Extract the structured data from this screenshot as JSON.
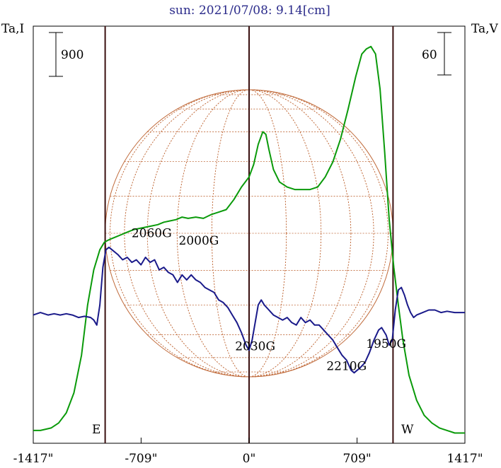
{
  "chart_data": {
    "type": "line",
    "title": "sun: 2021/07/08: 9.14[cm]",
    "left_axis_label": "Ta,I",
    "right_axis_label": "Ta,V",
    "left_scale_bar": "900",
    "right_scale_bar": "60",
    "east_label": "E",
    "west_label": "W",
    "xlim": [
      -1417,
      1417
    ],
    "x_ticks": [
      {
        "value": -1417,
        "label": "-1417\""
      },
      {
        "value": -709,
        "label": "-709\""
      },
      {
        "value": 0,
        "label": "0\""
      },
      {
        "value": 709,
        "label": "709\""
      },
      {
        "value": 1417,
        "label": "1417\""
      }
    ],
    "vertical_markers": [
      -945,
      0,
      945
    ],
    "solar_radius_arcsec": 945,
    "annotations": [
      {
        "text": "2060G",
        "x": -640,
        "y": 0.79
      },
      {
        "text": "2000G",
        "x": -330,
        "y": 0.76
      },
      {
        "text": "2030G",
        "x": 40,
        "y": 0.34
      },
      {
        "text": "2210G",
        "x": 640,
        "y": 0.26
      },
      {
        "text": "1950G",
        "x": 900,
        "y": 0.35
      }
    ],
    "series": [
      {
        "color": "#0a9a0a",
        "x": [
          -1417,
          -1370,
          -1300,
          -1250,
          -1200,
          -1150,
          -1100,
          -1060,
          -1020,
          -980,
          -950,
          -920,
          -880,
          -840,
          -800,
          -760,
          -720,
          -680,
          -640,
          -600,
          -560,
          -520,
          -480,
          -440,
          -400,
          -350,
          -300,
          -250,
          -200,
          -150,
          -100,
          -50,
          0,
          30,
          60,
          90,
          110,
          130,
          160,
          200,
          250,
          300,
          350,
          400,
          450,
          500,
          550,
          600,
          650,
          700,
          740,
          770,
          800,
          830,
          860,
          890,
          920,
          950,
          980,
          1010,
          1050,
          1100,
          1150,
          1200,
          1250,
          1300,
          1350,
          1417
        ],
        "y": [
          0.02,
          0.02,
          0.03,
          0.05,
          0.09,
          0.17,
          0.32,
          0.52,
          0.66,
          0.74,
          0.77,
          0.78,
          0.79,
          0.8,
          0.81,
          0.82,
          0.825,
          0.83,
          0.835,
          0.84,
          0.85,
          0.855,
          0.86,
          0.87,
          0.865,
          0.87,
          0.865,
          0.88,
          0.89,
          0.9,
          0.94,
          0.99,
          1.03,
          1.08,
          1.16,
          1.21,
          1.2,
          1.14,
          1.06,
          1.01,
          0.99,
          0.98,
          0.98,
          0.98,
          0.99,
          1.03,
          1.09,
          1.18,
          1.3,
          1.43,
          1.52,
          1.54,
          1.55,
          1.52,
          1.38,
          1.13,
          0.86,
          0.67,
          0.52,
          0.38,
          0.24,
          0.14,
          0.08,
          0.05,
          0.03,
          0.02,
          0.01,
          0.01
        ]
      },
      {
        "color": "#1a1a8a",
        "x": [
          -1417,
          -1370,
          -1320,
          -1280,
          -1240,
          -1200,
          -1160,
          -1120,
          -1080,
          -1040,
          -1020,
          -1000,
          -980,
          -960,
          -940,
          -920,
          -900,
          -880,
          -860,
          -830,
          -800,
          -770,
          -740,
          -710,
          -680,
          -650,
          -620,
          -590,
          -560,
          -530,
          -500,
          -470,
          -440,
          -410,
          -380,
          -350,
          -320,
          -290,
          -260,
          -230,
          -200,
          -170,
          -140,
          -110,
          -80,
          -50,
          -20,
          0,
          20,
          40,
          60,
          80,
          100,
          130,
          160,
          190,
          220,
          250,
          280,
          310,
          340,
          370,
          400,
          430,
          460,
          490,
          520,
          550,
          580,
          610,
          640,
          670,
          690,
          710,
          730,
          760,
          790,
          820,
          850,
          870,
          900,
          920,
          940,
          960,
          980,
          1000,
          1020,
          1040,
          1060,
          1080,
          1100,
          1140,
          1180,
          1220,
          1260,
          1300,
          1350,
          1417
        ],
        "y": [
          0.48,
          0.49,
          0.48,
          0.485,
          0.48,
          0.485,
          0.48,
          0.47,
          0.475,
          0.47,
          0.46,
          0.44,
          0.52,
          0.67,
          0.74,
          0.75,
          0.74,
          0.73,
          0.72,
          0.7,
          0.71,
          0.69,
          0.7,
          0.68,
          0.71,
          0.69,
          0.7,
          0.66,
          0.67,
          0.65,
          0.64,
          0.61,
          0.64,
          0.62,
          0.64,
          0.62,
          0.61,
          0.59,
          0.58,
          0.57,
          0.54,
          0.53,
          0.51,
          0.48,
          0.45,
          0.41,
          0.36,
          0.34,
          0.38,
          0.45,
          0.52,
          0.54,
          0.52,
          0.5,
          0.48,
          0.47,
          0.46,
          0.47,
          0.45,
          0.44,
          0.47,
          0.45,
          0.46,
          0.44,
          0.44,
          0.42,
          0.4,
          0.38,
          0.35,
          0.32,
          0.3,
          0.26,
          0.25,
          0.26,
          0.27,
          0.29,
          0.33,
          0.38,
          0.42,
          0.43,
          0.4,
          0.36,
          0.38,
          0.5,
          0.58,
          0.59,
          0.56,
          0.52,
          0.49,
          0.47,
          0.48,
          0.49,
          0.5,
          0.5,
          0.49,
          0.495,
          0.49,
          0.49
        ]
      }
    ]
  }
}
